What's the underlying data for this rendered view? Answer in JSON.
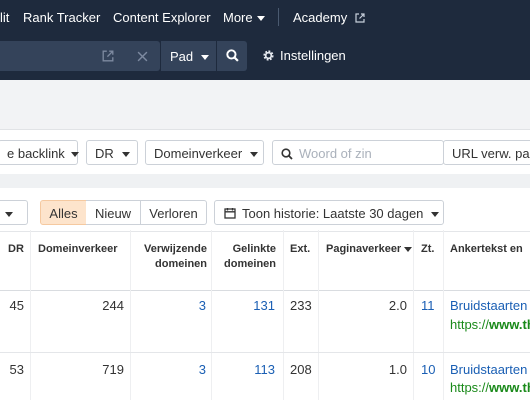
{
  "nav": {
    "items": [
      "lit",
      "Rank Tracker",
      "Content Explorer",
      "More"
    ],
    "academy": "Academy"
  },
  "search": {
    "mode": "Pad",
    "settings": "Instellingen"
  },
  "filters": {
    "backlink": "e backlink",
    "dr": "DR",
    "domain_traffic": "Domeinverkeer",
    "word_placeholder": "Woord of zin",
    "url_ref": "URL verw. pag"
  },
  "tabs": {
    "all": "Alles",
    "new": "Nieuw",
    "lost": "Verloren",
    "history": "Toon historie: Laatste 30 dagen"
  },
  "table": {
    "headers": {
      "dr": "DR",
      "domain_traffic": "Domeinverkeer",
      "ref_domains_1": "Verwijzende",
      "ref_domains_2": "domeinen",
      "linked_domains_1": "Gelinkte",
      "linked_domains_2": "domeinen",
      "ext": "Ext.",
      "page_traffic": "Paginaverkeer",
      "zt": "Zt.",
      "anchor": "Ankertekst en"
    },
    "rows": [
      {
        "dr": "45",
        "traffic": "244",
        "ref": "3",
        "linked": "131",
        "ext": "233",
        "page": "2.0",
        "zt": "11",
        "anchor": "Bruidstaarten",
        "url_prefix": "https://",
        "url_bold": "www.th"
      },
      {
        "dr": "53",
        "traffic": "719",
        "ref": "3",
        "linked": "113",
        "ext": "208",
        "page": "1.0",
        "zt": "10",
        "anchor": "Bruidstaarten",
        "url_prefix": "https://",
        "url_bold": "www.th"
      }
    ]
  }
}
